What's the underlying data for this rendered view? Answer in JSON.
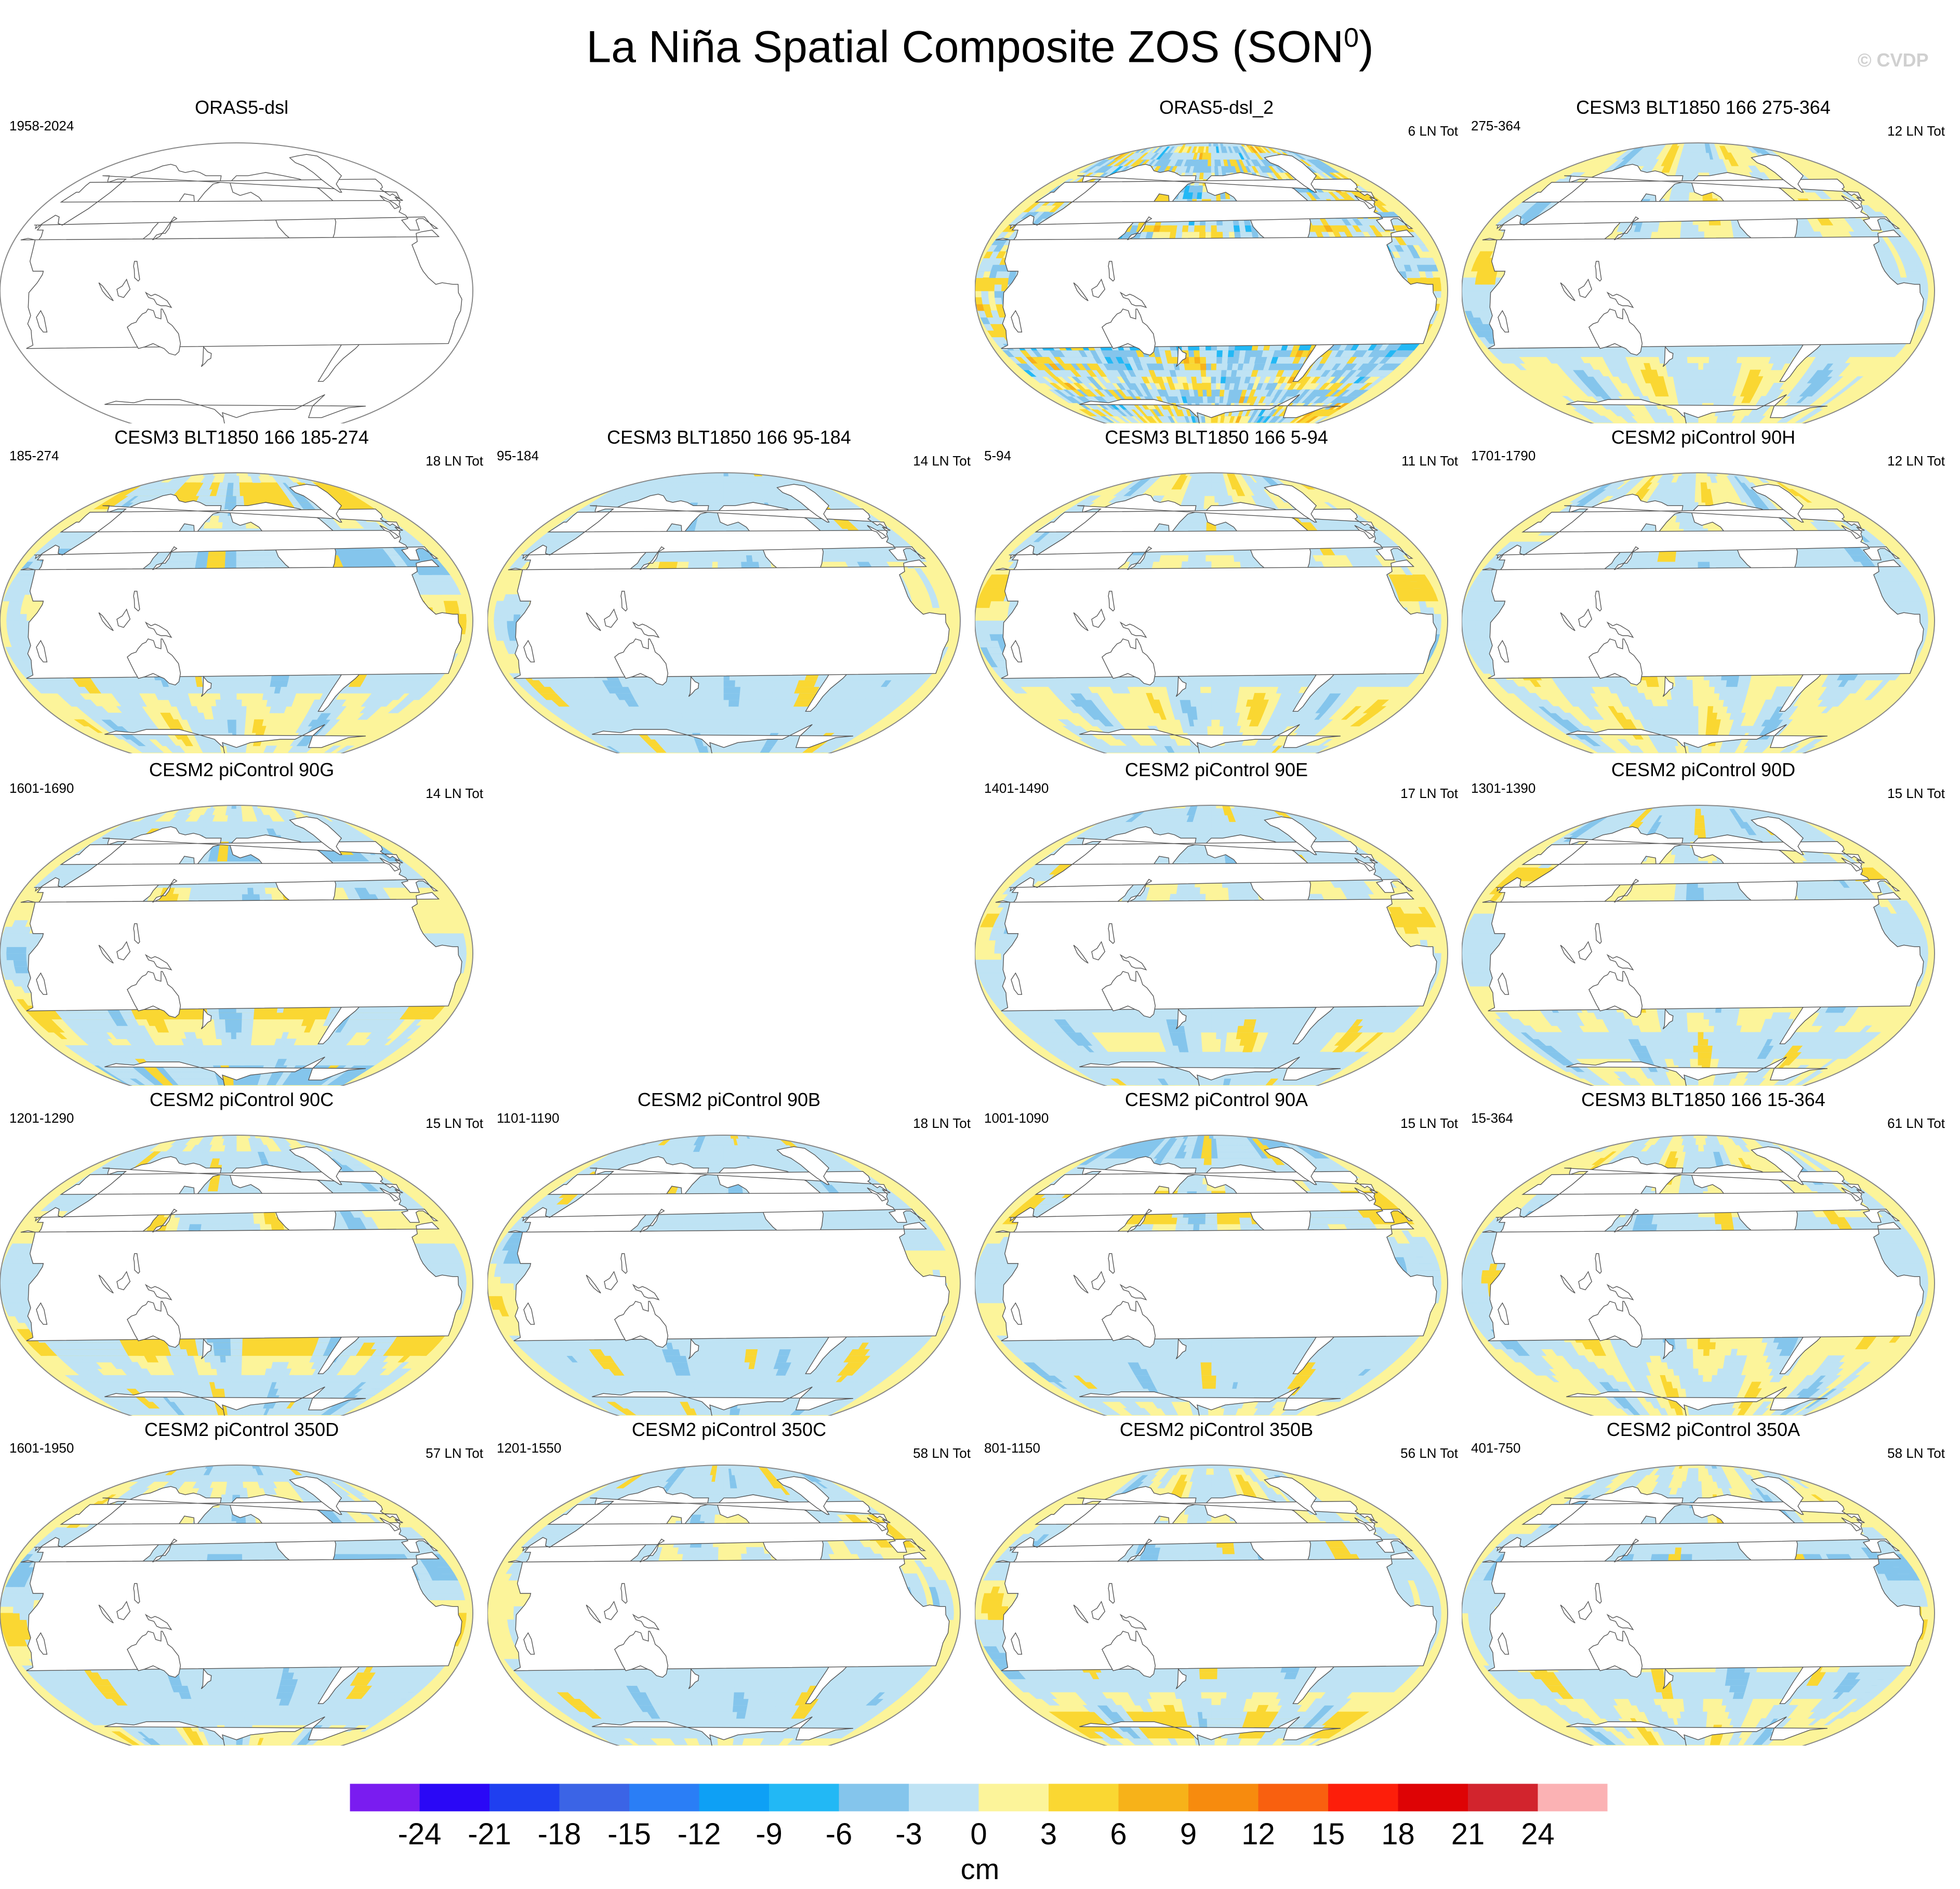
{
  "title": "La Niña Spatial Composite ZOS (SON",
  "title_superscript": "0",
  "title_close": ")",
  "watermark": "© CVDP",
  "panels": [
    {
      "title": "ORAS5-dsl",
      "period": "1958-2024",
      "count": "",
      "blank": true,
      "strength": 0,
      "noise": 0
    },
    {
      "title": "ORAS5-dsl_2",
      "period": "",
      "count": "6 LN Tot",
      "blank": false,
      "strength": 1.1,
      "noise": 1
    },
    {
      "title": "CESM3 BLT1850 166 275-364",
      "period": "275-364",
      "count": "12 LN Tot",
      "blank": false,
      "strength": 0.6,
      "noise": 0
    },
    {
      "title": "CESM3 BLT1850 166 185-274",
      "period": "185-274",
      "count": "18 LN Tot",
      "blank": false,
      "strength": 0.5,
      "noise": 0
    },
    {
      "title": "CESM3 BLT1850 166 95-184",
      "period": "95-184",
      "count": "14 LN Tot",
      "blank": false,
      "strength": 0.5,
      "noise": 0
    },
    {
      "title": "CESM3 BLT1850 166 5-94",
      "period": "5-94",
      "count": "11 LN Tot",
      "blank": false,
      "strength": 0.6,
      "noise": 0
    },
    {
      "title": "CESM2 piControl 90H",
      "period": "1701-1790",
      "count": "12 LN Tot",
      "blank": false,
      "strength": 0.9,
      "noise": 0
    },
    {
      "title": "CESM2 piControl 90G",
      "period": "1601-1690",
      "count": "14 LN Tot",
      "blank": false,
      "strength": 1.0,
      "noise": 0
    },
    {
      "title": "CESM2 piControl 90E",
      "period": "1401-1490",
      "count": "17 LN Tot",
      "blank": false,
      "strength": 0.95,
      "noise": 0
    },
    {
      "title": "CESM2 piControl 90D",
      "period": "1301-1390",
      "count": "15 LN Tot",
      "blank": false,
      "strength": 0.95,
      "noise": 0
    },
    {
      "title": "CESM2 piControl 90C",
      "period": "1201-1290",
      "count": "15 LN Tot",
      "blank": false,
      "strength": 1.05,
      "noise": 0
    },
    {
      "title": "CESM2 piControl 90B",
      "period": "1101-1190",
      "count": "18 LN Tot",
      "blank": false,
      "strength": 1.0,
      "noise": 0
    },
    {
      "title": "CESM2 piControl 90A",
      "period": "1001-1090",
      "count": "15 LN Tot",
      "blank": false,
      "strength": 1.0,
      "noise": 0
    },
    {
      "title": "CESM3 BLT1850 166 15-364",
      "period": "15-364",
      "count": "61 LN Tot",
      "blank": false,
      "strength": 0.6,
      "noise": 0
    },
    {
      "title": "CESM2 piControl 350D",
      "period": "1601-1950",
      "count": "57 LN Tot",
      "blank": false,
      "strength": 0.9,
      "noise": 0
    },
    {
      "title": "CESM2 piControl 350C",
      "period": "1201-1550",
      "count": "58 LN Tot",
      "blank": false,
      "strength": 0.95,
      "noise": 0
    },
    {
      "title": "CESM2 piControl 350B",
      "period": "801-1150",
      "count": "56 LN Tot",
      "blank": false,
      "strength": 0.9,
      "noise": 0
    },
    {
      "title": "CESM2 piControl 350A",
      "period": "401-750",
      "count": "58 LN Tot",
      "blank": false,
      "strength": 0.9,
      "noise": 0
    }
  ],
  "colorbar": {
    "label": "cm",
    "ticks": [
      "-24",
      "-21",
      "-18",
      "-15",
      "-12",
      "-9",
      "-6",
      "-3",
      "0",
      "3",
      "6",
      "9",
      "12",
      "15",
      "18",
      "21",
      "24"
    ],
    "colors": [
      "#7a1cf0",
      "#2a08f6",
      "#1f3ff0",
      "#3b64e6",
      "#2a7ef6",
      "#0ea0f5",
      "#22b8f5",
      "#84c5ec",
      "#bfe3f4",
      "#fcf49a",
      "#fad732",
      "#f7b219",
      "#f78b0e",
      "#f9600f",
      "#fd1e0a",
      "#de0305",
      "#d2242d",
      "#fbb2b4"
    ],
    "range": [
      -27,
      27
    ]
  },
  "colors": {
    "land": "#ffffff",
    "coast": "#555555",
    "border": "#888888"
  }
}
